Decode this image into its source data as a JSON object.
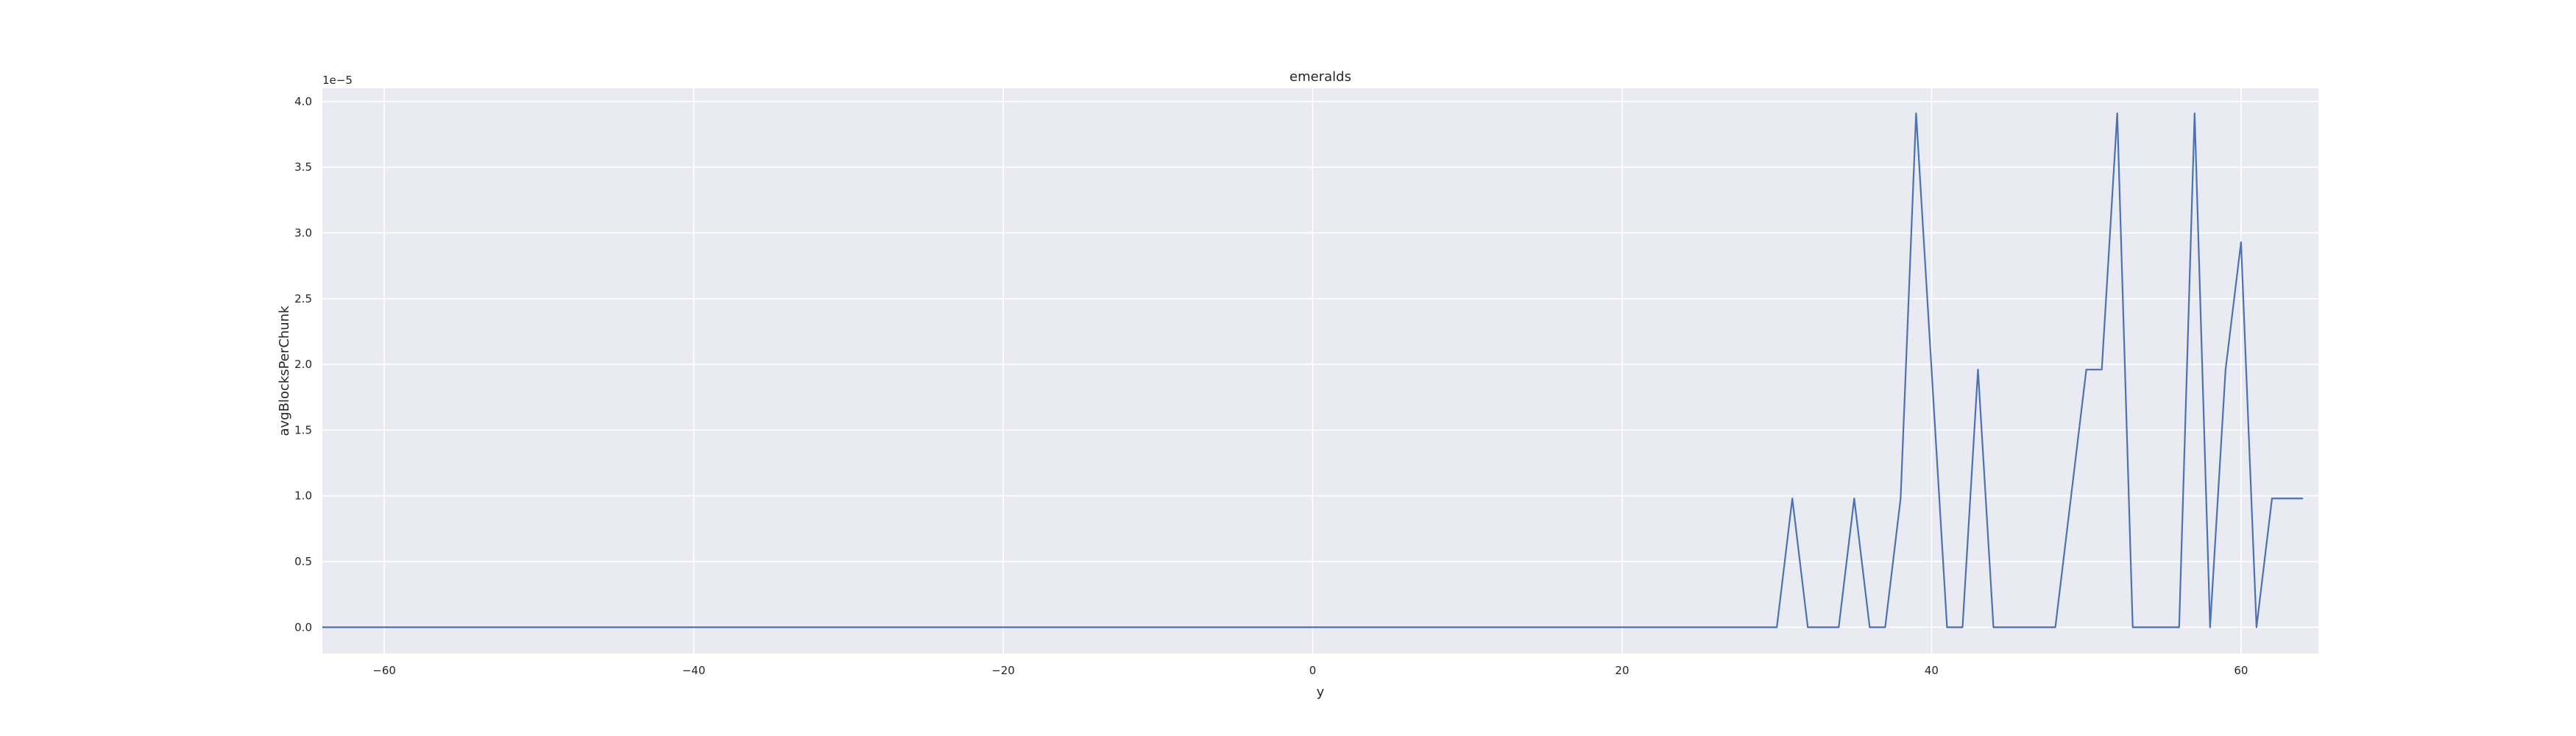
{
  "chart_data": {
    "type": "line",
    "title": "emeralds",
    "xlabel": "y",
    "ylabel": "avgBlocksPerChunk",
    "y_offset_text": "1e−5",
    "xlim": [
      -64,
      65
    ],
    "ylim": [
      -0.2,
      4.1
    ],
    "xticks": [
      -60,
      -40,
      -20,
      0,
      20,
      40,
      60
    ],
    "xtick_labels": [
      "−60",
      "−40",
      "−20",
      "0",
      "20",
      "40",
      "60"
    ],
    "yticks": [
      0.0,
      0.5,
      1.0,
      1.5,
      2.0,
      2.5,
      3.0,
      3.5,
      4.0
    ],
    "ytick_labels": [
      "0.0",
      "0.5",
      "1.0",
      "1.5",
      "2.0",
      "2.5",
      "3.0",
      "3.5",
      "4.0"
    ],
    "grid": true,
    "colors": {
      "background": "#eaeaf2",
      "grid": "#ffffff",
      "line": "#4c72b0"
    },
    "series": [
      {
        "x_start": -64,
        "x_end": 64,
        "nonzero_points": [
          [
            31,
            0.98
          ],
          [
            35,
            0.98
          ],
          [
            38,
            0.98
          ],
          [
            39,
            3.91
          ],
          [
            40,
            1.96
          ],
          [
            43,
            1.96
          ],
          [
            49,
            0.98
          ],
          [
            50,
            1.96
          ],
          [
            51,
            1.96
          ],
          [
            52,
            3.91
          ],
          [
            57,
            3.91
          ],
          [
            59,
            1.96
          ],
          [
            60,
            2.93
          ],
          [
            62,
            0.98
          ],
          [
            63,
            0.98
          ],
          [
            64,
            0.98
          ]
        ]
      }
    ]
  }
}
